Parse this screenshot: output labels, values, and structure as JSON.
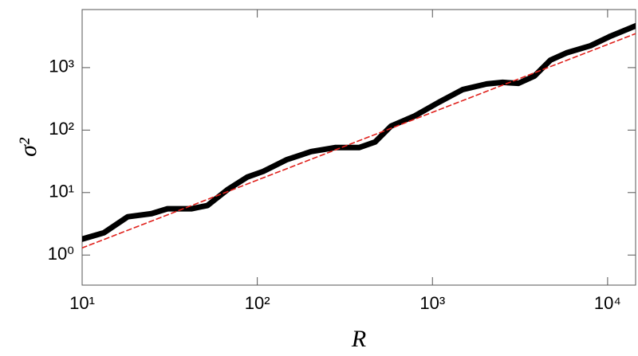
{
  "chart_data": {
    "type": "line",
    "x_label": "R",
    "y_label": "σ²",
    "xscale": "log",
    "yscale": "log",
    "xlim": [
      10,
      14450
    ],
    "ylim": [
      0.33,
      8500
    ],
    "xticks": [
      {
        "value": 10,
        "label": "10¹"
      },
      {
        "value": 100,
        "label": "10²"
      },
      {
        "value": 1000,
        "label": "10³"
      },
      {
        "value": 10000,
        "label": "10⁴"
      }
    ],
    "yticks": [
      {
        "value": 1,
        "label": "10⁰"
      },
      {
        "value": 10,
        "label": "10¹"
      },
      {
        "value": 100,
        "label": "10²"
      },
      {
        "value": 1000,
        "label": "10³"
      }
    ],
    "series": [
      {
        "color": "#000000",
        "style": "solid",
        "x": [
          10,
          13.3,
          18.2,
          24.9,
          30.7,
          42,
          51.9,
          67.5,
          87.7,
          108,
          148,
          203,
          278,
          381,
          470,
          580,
          794,
          1088,
          1489,
          2040,
          2514,
          3090,
          3827,
          4721,
          5821,
          7980,
          10370,
          14450
        ],
        "values": [
          1.8,
          2.27,
          4.1,
          4.6,
          5.5,
          5.5,
          6.2,
          11.1,
          17.7,
          21.8,
          33.8,
          45.3,
          52.5,
          52.5,
          64.4,
          116,
          169,
          279,
          446,
          548,
          581,
          560,
          735,
          1322,
          1722,
          2239,
          3184,
          4667
        ]
      },
      {
        "color": "#e0201b",
        "style": "dashed",
        "x": [
          10,
          14450
        ],
        "values": [
          1.3,
          3500
        ]
      }
    ]
  }
}
